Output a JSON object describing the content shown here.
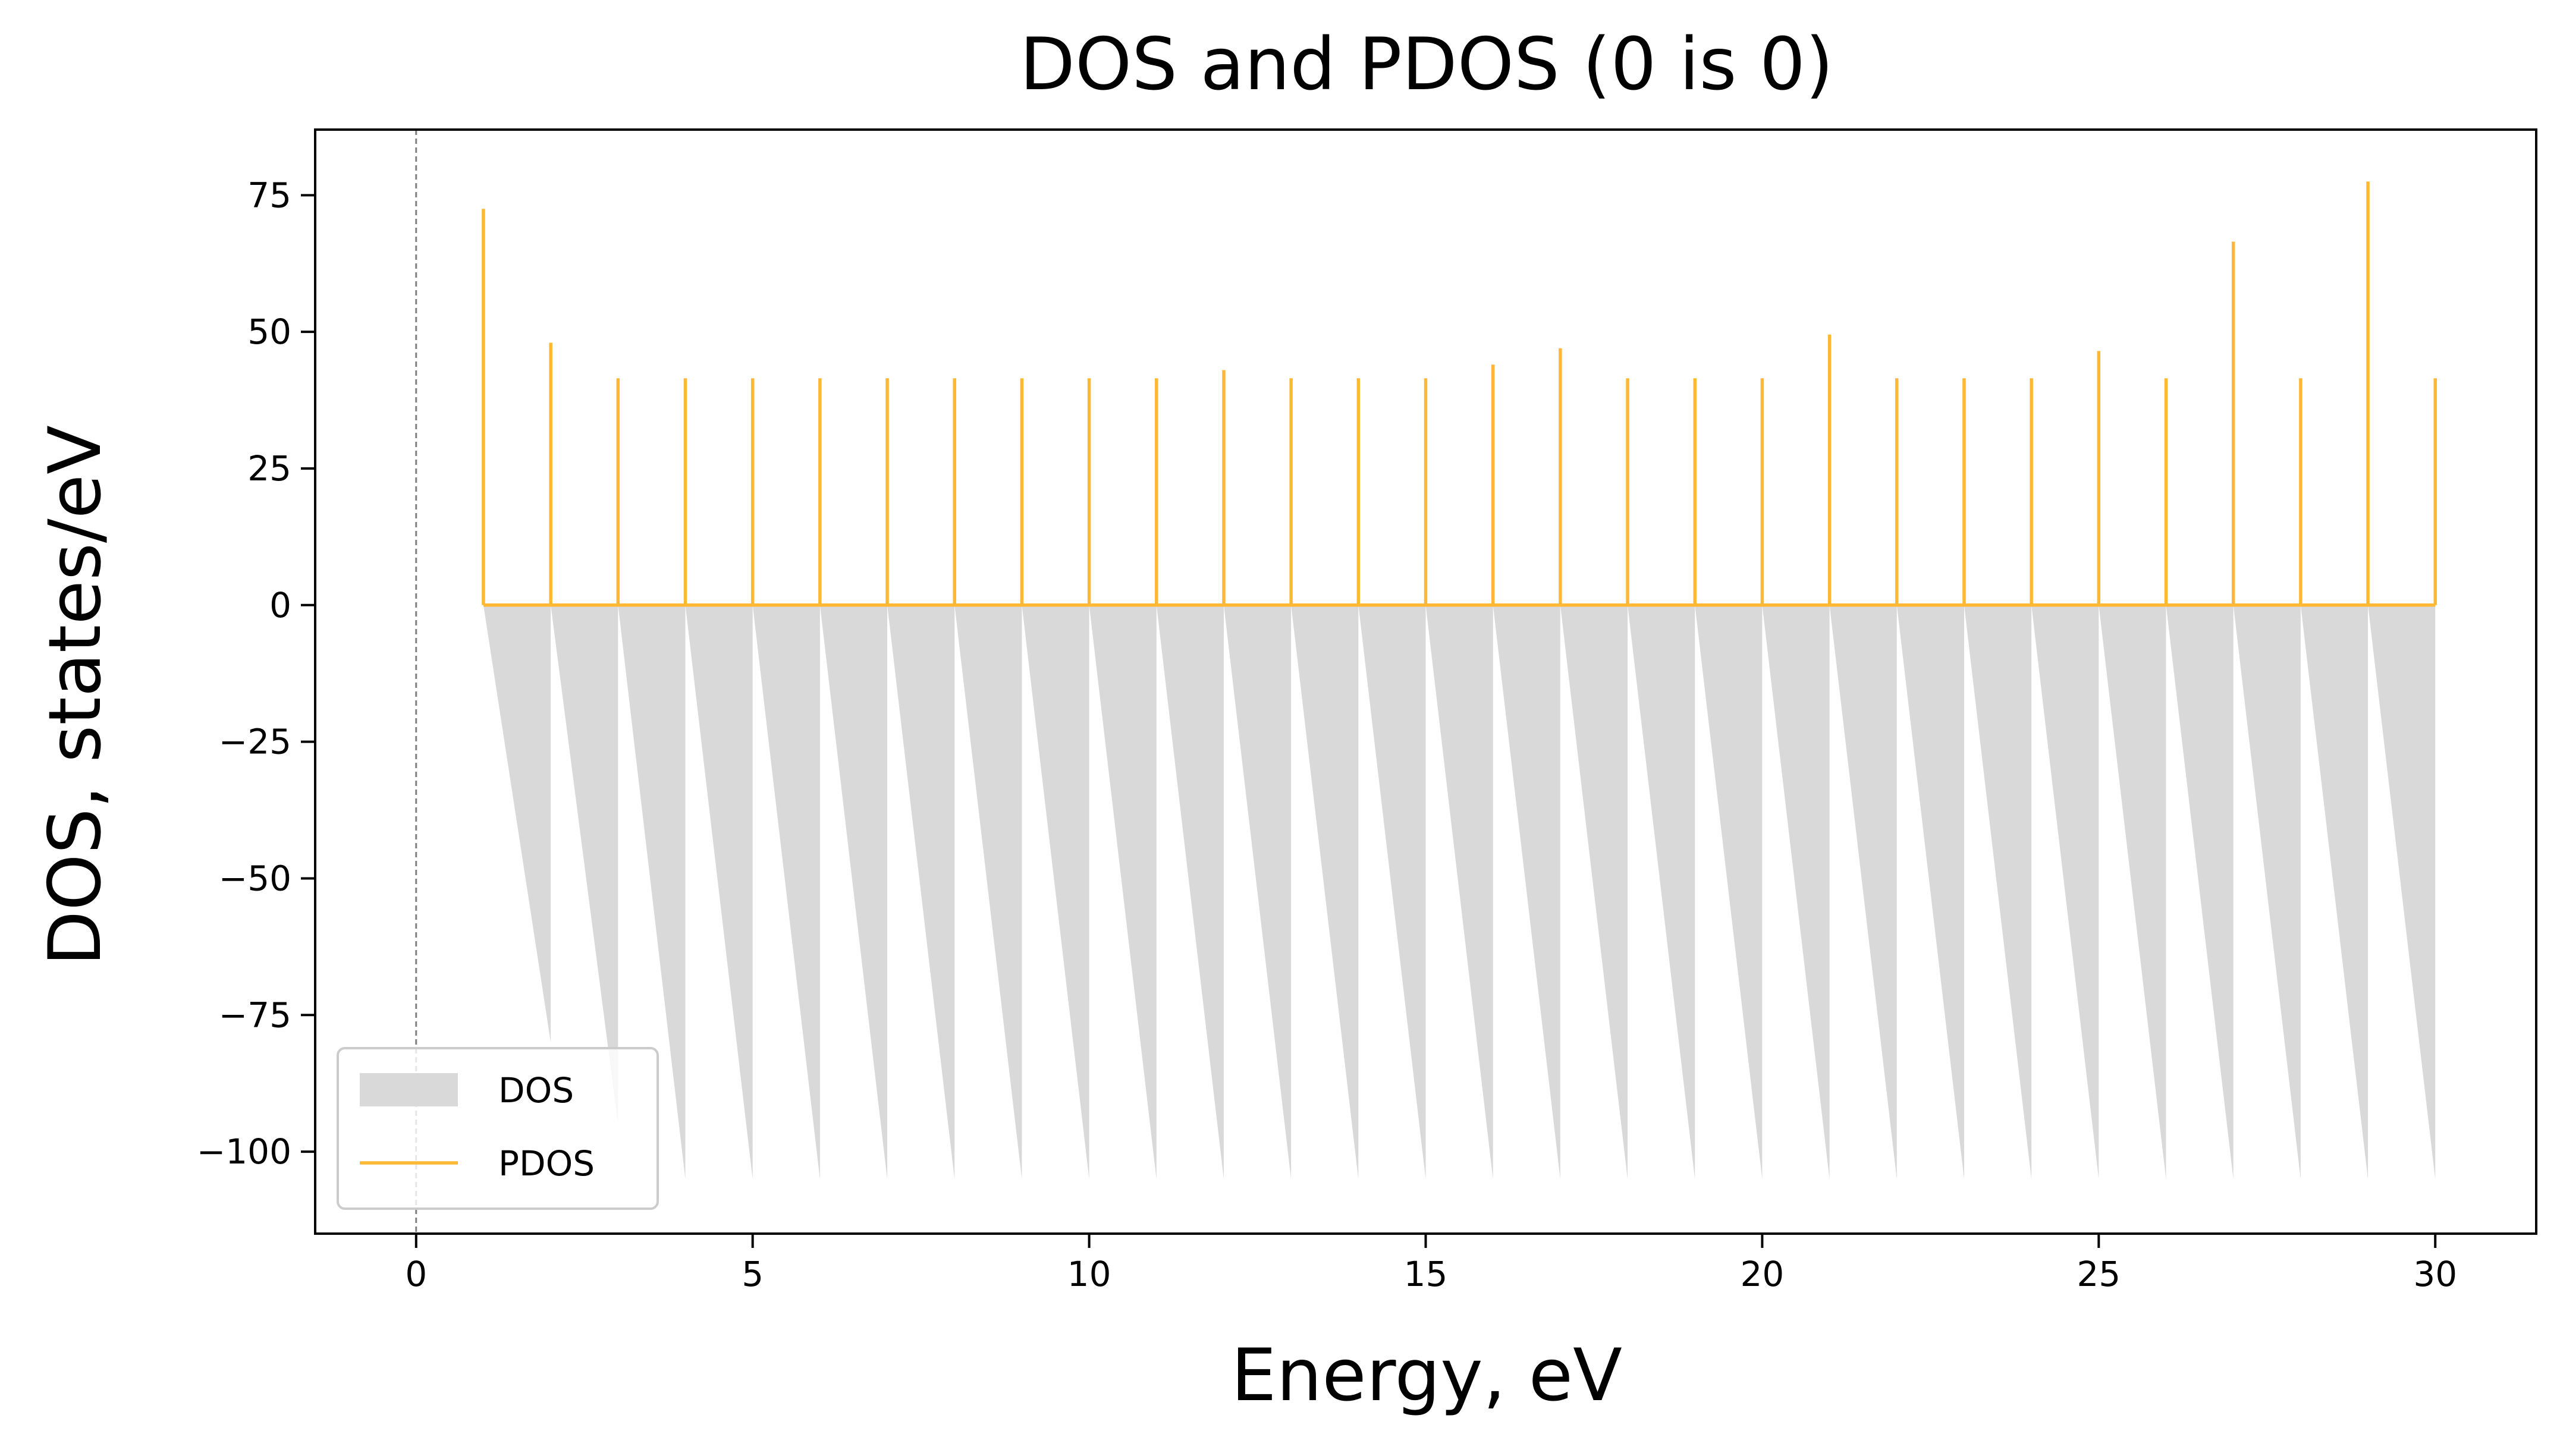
{
  "chart_data": {
    "type": "area",
    "title": "DOS and PDOS (0 is 0)",
    "xlabel": "Energy, eV",
    "ylabel": "DOS, states/eV",
    "xlim": [
      -1.5,
      31.5
    ],
    "ylim": [
      -115,
      87
    ],
    "xticks": [
      0,
      5,
      10,
      15,
      20,
      25,
      30
    ],
    "yticks": [
      75,
      50,
      25,
      0,
      -25,
      -50,
      -75,
      -100
    ],
    "xtick_labels": [
      "0",
      "5",
      "10",
      "15",
      "20",
      "25",
      "30"
    ],
    "ytick_labels": [
      "75",
      "50",
      "25",
      "0",
      "−25",
      "−50",
      "−75",
      "−100"
    ],
    "grid": false,
    "legend_position": "lower-left",
    "fermi_line_x": 0,
    "series": [
      {
        "name": "DOS",
        "kind": "filled-area",
        "color": "#d9d9d9",
        "x": [
          1,
          2,
          2,
          3,
          3,
          4,
          4,
          5,
          5,
          6,
          6,
          7,
          7,
          8,
          8,
          9,
          9,
          10,
          10,
          11,
          11,
          12,
          12,
          13,
          13,
          14,
          14,
          15,
          15,
          16,
          16,
          17,
          17,
          18,
          18,
          19,
          19,
          20,
          20,
          21,
          21,
          22,
          22,
          23,
          23,
          24,
          24,
          25,
          25,
          26,
          26,
          27,
          27,
          28,
          28,
          29,
          29,
          30
        ],
        "y": [
          0,
          -80,
          0,
          -95,
          0,
          -105,
          0,
          -105,
          0,
          -105,
          0,
          -105,
          0,
          -105,
          0,
          -105,
          0,
          -105,
          0,
          -105,
          0,
          -105,
          0,
          -105,
          0,
          -105,
          0,
          -105,
          0,
          -105,
          0,
          -105,
          0,
          -105,
          0,
          -105,
          0,
          -105,
          0,
          -105,
          0,
          -105,
          0,
          -105,
          0,
          -105,
          0,
          -105,
          0,
          -105,
          0,
          -105,
          0,
          -105,
          0,
          -105,
          0,
          -105
        ]
      },
      {
        "name": "PDOS",
        "kind": "spikes",
        "color": "#ffb833",
        "x": [
          1,
          2,
          3,
          4,
          5,
          6,
          7,
          8,
          9,
          10,
          11,
          12,
          13,
          14,
          15,
          16,
          17,
          18,
          19,
          20,
          21,
          22,
          23,
          24,
          25,
          26,
          27,
          28,
          29,
          30
        ],
        "y": [
          72.5,
          48,
          41.5,
          41.5,
          41.5,
          41.5,
          41.5,
          41.5,
          41.5,
          41.5,
          41.5,
          43,
          41.5,
          41.5,
          41.5,
          44,
          47,
          41.5,
          41.5,
          41.5,
          49.5,
          41.5,
          41.5,
          41.5,
          46.5,
          41.5,
          66.5,
          41.5,
          77.5,
          41.5
        ]
      }
    ]
  }
}
